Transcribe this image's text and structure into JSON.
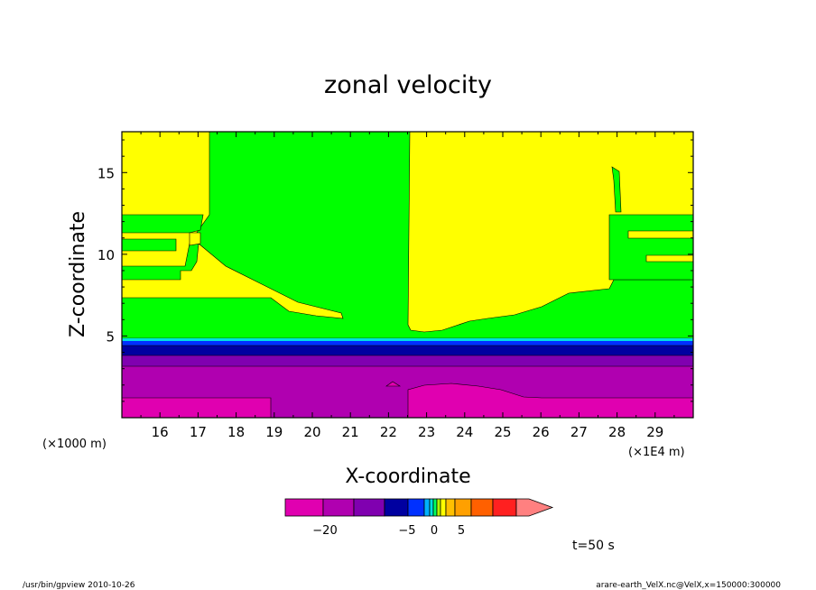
{
  "chart_data": {
    "type": "heatmap",
    "title": "zonal velocity",
    "xlabel": "X-coordinate",
    "ylabel": "Z-coordinate",
    "x_unit_left": "(×1000 m)",
    "x_unit_right": "(×1E4 m)",
    "x_ticks": [
      "16",
      "17",
      "18",
      "19",
      "20",
      "21",
      "22",
      "23",
      "24",
      "25",
      "26",
      "27",
      "28",
      "29"
    ],
    "x_tick_values": [
      16,
      17,
      18,
      19,
      20,
      21,
      22,
      23,
      24,
      25,
      26,
      27,
      28,
      29
    ],
    "y_ticks": [
      "5",
      "10",
      "15"
    ],
    "y_tick_values": [
      5,
      10,
      15
    ],
    "xlim": [
      15,
      30
    ],
    "ylim": [
      0,
      17.5
    ],
    "colorbar": {
      "colors": [
        "#e000b0",
        "#b000b0",
        "#8000b0",
        "#0000a0",
        "#0030ff",
        "#00b0ff",
        "#00e0e0",
        "#00ff60",
        "#b0ff00",
        "#ffff00",
        "#ffc000",
        "#ffa000",
        "#ff6000",
        "#ff2020",
        "#ff8080"
      ],
      "labels": [
        "−20",
        "−5",
        "0",
        "5"
      ]
    },
    "time_label": "t=50 s"
  },
  "footer": {
    "left": "/usr/bin/gpview   2010-10-26",
    "right": "arare-earth_VelX.nc@VelX,x=150000:300000"
  }
}
